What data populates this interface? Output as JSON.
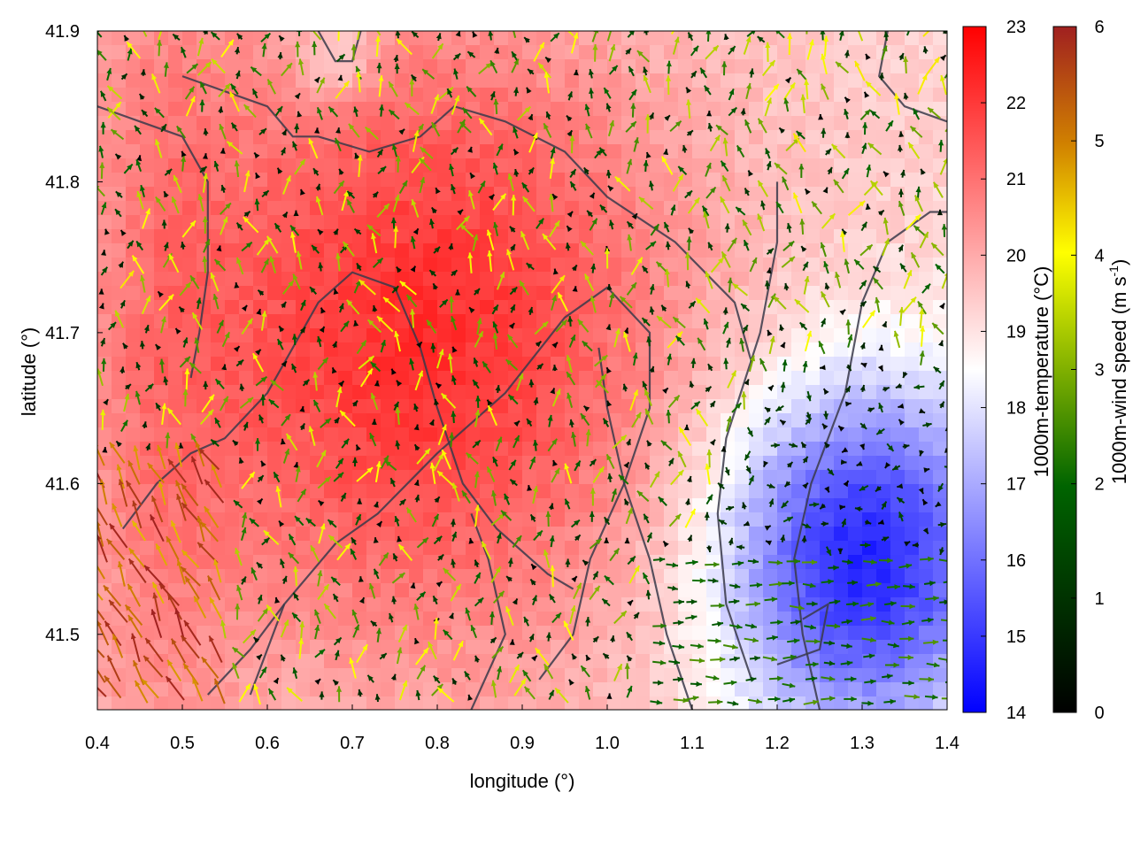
{
  "chart_data": {
    "type": "heatmap",
    "title": "",
    "xlabel": "longitude (°)",
    "ylabel": "latitude (°)",
    "xlim": [
      0.4,
      1.4
    ],
    "ylim": [
      41.45,
      41.9
    ],
    "x_ticks": [
      "0.4",
      "0.5",
      "0.6",
      "0.7",
      "0.8",
      "0.9",
      "1.0",
      "1.1",
      "1.2",
      "1.3",
      "1.4"
    ],
    "y_ticks": [
      "41.5",
      "41.6",
      "41.7",
      "41.8",
      "41.9"
    ],
    "temperature_colorbar": {
      "label": "1000m-temperature (°C)",
      "range": [
        14,
        23
      ],
      "ticks": [
        "14",
        "15",
        "16",
        "17",
        "18",
        "19",
        "20",
        "21",
        "22",
        "23"
      ],
      "colors": [
        "#0000ff",
        "#ffffff",
        "#ff0000"
      ]
    },
    "wind_colorbar": {
      "label_main": "1000m-wind speed (m s",
      "label_sup": "-1",
      "label_end": ")",
      "range": [
        0,
        6
      ],
      "ticks": [
        "0",
        "1",
        "2",
        "3",
        "4",
        "5",
        "6"
      ],
      "colors": [
        "#000000",
        "#006400",
        "#80b000",
        "#ffff00",
        "#d08000",
        "#a02020"
      ]
    },
    "contour_color": "#3a3a4a",
    "cold_region_center": [
      1.3,
      41.55
    ],
    "warm_region_center": [
      0.78,
      41.7
    ]
  }
}
